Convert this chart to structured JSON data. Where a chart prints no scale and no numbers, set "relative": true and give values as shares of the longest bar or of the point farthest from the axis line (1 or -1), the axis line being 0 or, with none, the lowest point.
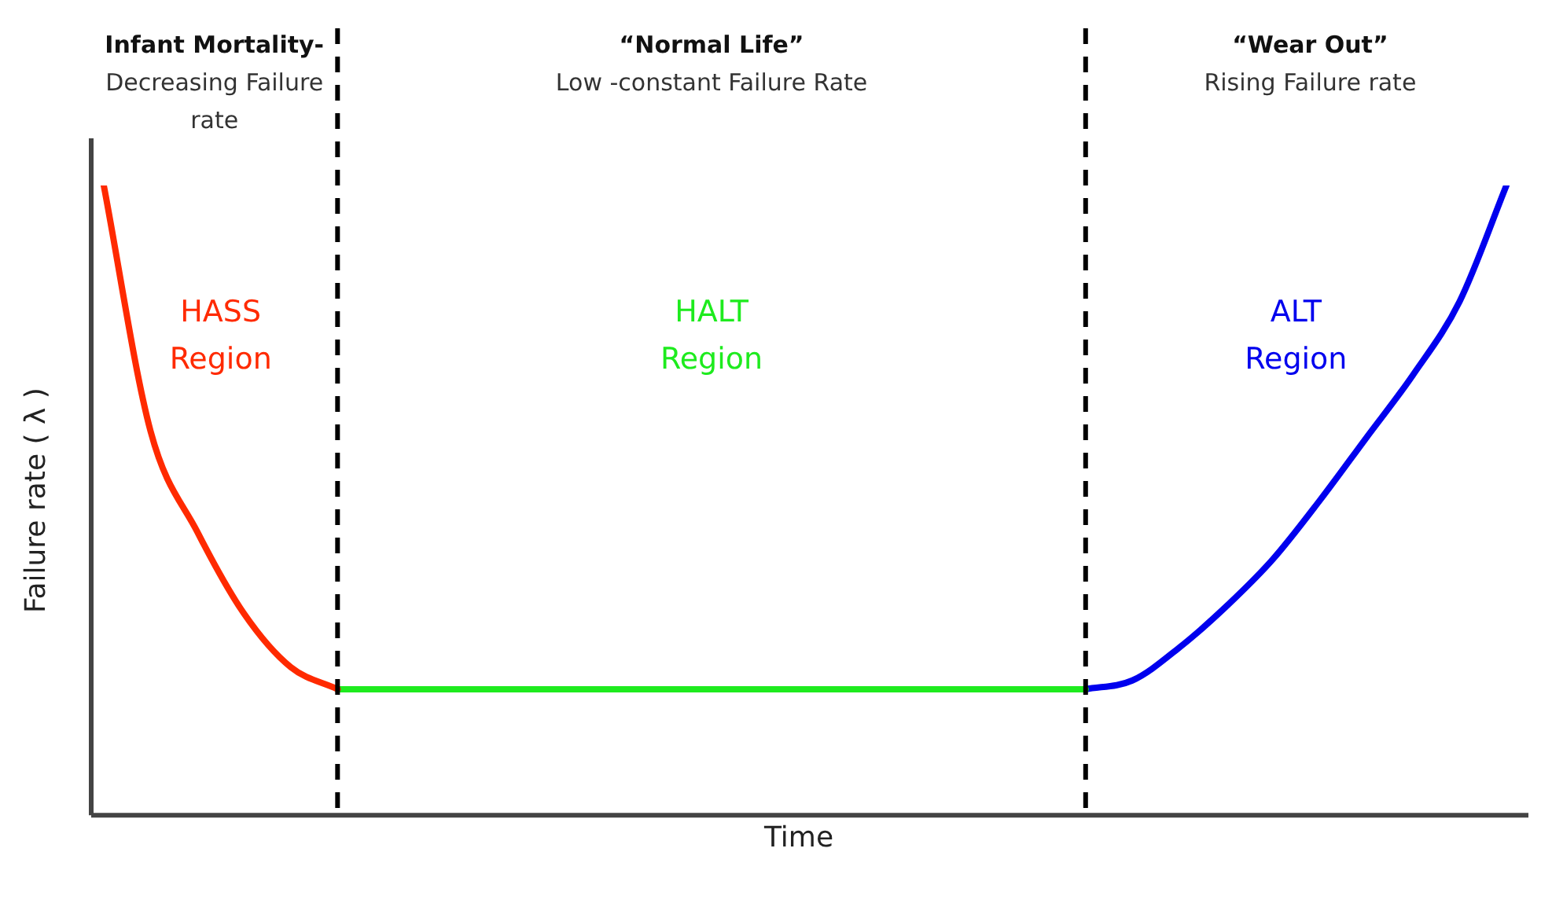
{
  "chart_data": {
    "type": "line",
    "relative": true,
    "xlabel": "Time",
    "ylabel": "Failure rate ( λ )",
    "categories": [
      null,
      null,
      null,
      null,
      null,
      null,
      null,
      null,
      null,
      null,
      null,
      null,
      null,
      null,
      null,
      null,
      null,
      null,
      null,
      null,
      null,
      null,
      null,
      null,
      null,
      null,
      null,
      null,
      null,
      null,
      null
    ],
    "series": [
      {
        "name": "HASS Region",
        "color": "#ff2a00",
        "values": [
          1.0,
          0.61,
          0.45,
          0.32,
          0.235,
          0.2,
          null,
          null,
          null,
          null,
          null,
          null,
          null,
          null,
          null,
          null,
          null,
          null,
          null,
          null,
          null,
          null,
          null,
          null,
          null,
          null,
          null,
          null,
          null,
          null,
          null
        ]
      },
      {
        "name": "HALT Region",
        "color": "#1eeb1e",
        "values": [
          null,
          null,
          null,
          null,
          null,
          0.2,
          0.2,
          0.2,
          0.2,
          0.2,
          0.2,
          0.2,
          0.2,
          0.2,
          0.2,
          0.2,
          0.2,
          0.2,
          0.2,
          0.2,
          0.2,
          0.2,
          null,
          null,
          null,
          null,
          null,
          null,
          null,
          null,
          null
        ]
      },
      {
        "name": "ALT Region",
        "color": "#0000ee",
        "values": [
          null,
          null,
          null,
          null,
          null,
          null,
          null,
          null,
          null,
          null,
          null,
          null,
          null,
          null,
          null,
          null,
          null,
          null,
          null,
          null,
          null,
          0.2,
          0.214,
          0.266,
          0.331,
          0.406,
          0.499,
          0.599,
          0.699,
          0.816,
          1.0
        ]
      }
    ],
    "annotations": [
      "Infant Mortality-\nDecreasing Failure\nrate",
      "“Normal Life”\nLow -constant Failure Rate",
      "“Wear Out”\nRising Failure rate"
    ],
    "line_style": "solid",
    "marker": "none",
    "grid": false,
    "legend": false
  }
}
